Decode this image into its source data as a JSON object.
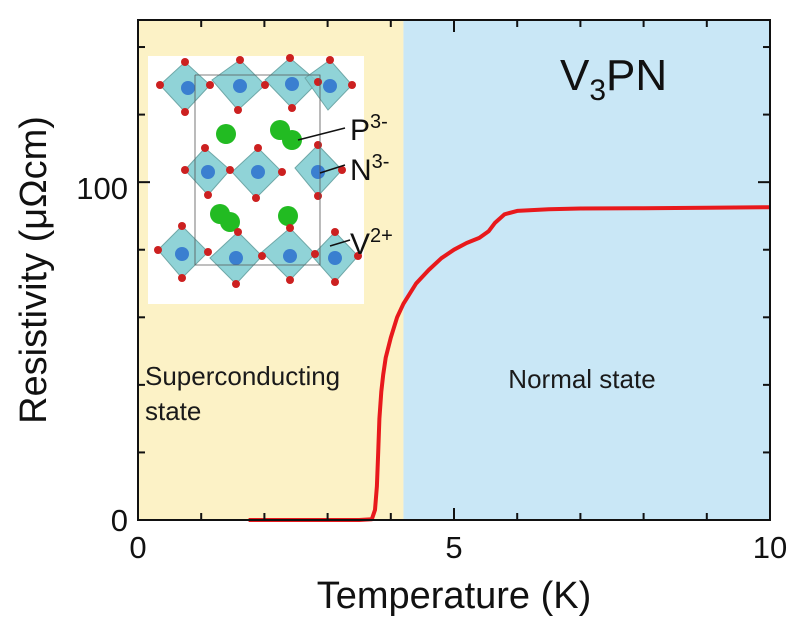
{
  "chart_data": {
    "type": "line",
    "xlabel": "Temperature (K)",
    "ylabel": "Resistivity (μΩcm)",
    "xlim": [
      0,
      10
    ],
    "ylim": [
      0,
      148
    ],
    "x_ticks": [
      "0",
      "5",
      "10"
    ],
    "y_ticks": [
      "0",
      "100"
    ],
    "annotation": {
      "main": "V",
      "sub": "3",
      "rest": "PN"
    },
    "regions": [
      {
        "label_line1": "Superconducting",
        "label_line2": "state",
        "x_start": 0,
        "x_end": 4.2,
        "color": "#fcf2c6"
      },
      {
        "label": "Normal state",
        "x_start": 4.2,
        "x_end": 10,
        "color": "#c9e7f6"
      }
    ],
    "inset_labels": [
      {
        "base": "P",
        "sup": "3-"
      },
      {
        "base": "N",
        "sup": "3-"
      },
      {
        "base": "V",
        "sup": "2+"
      }
    ],
    "series": [
      {
        "color": "#e8191c",
        "points": [
          [
            1.75,
            0.0
          ],
          [
            2.5,
            0.0
          ],
          [
            3.0,
            0.0
          ],
          [
            3.5,
            0.0
          ],
          [
            3.7,
            0.2
          ],
          [
            3.75,
            3.0
          ],
          [
            3.78,
            10.0
          ],
          [
            3.8,
            20.0
          ],
          [
            3.82,
            30.0
          ],
          [
            3.85,
            38.0
          ],
          [
            3.88,
            43.0
          ],
          [
            3.92,
            48.0
          ],
          [
            4.0,
            54.0
          ],
          [
            4.1,
            60.0
          ],
          [
            4.2,
            64.0
          ],
          [
            4.4,
            70.0
          ],
          [
            4.6,
            74.0
          ],
          [
            4.8,
            77.5
          ],
          [
            5.0,
            80.0
          ],
          [
            5.2,
            82.0
          ],
          [
            5.4,
            83.5
          ],
          [
            5.55,
            85.5
          ],
          [
            5.65,
            88.0
          ],
          [
            5.8,
            90.5
          ],
          [
            6.0,
            91.5
          ],
          [
            6.5,
            92.0
          ],
          [
            7.0,
            92.2
          ],
          [
            8.0,
            92.3
          ],
          [
            9.0,
            92.4
          ],
          [
            10.0,
            92.6
          ]
        ]
      }
    ]
  }
}
